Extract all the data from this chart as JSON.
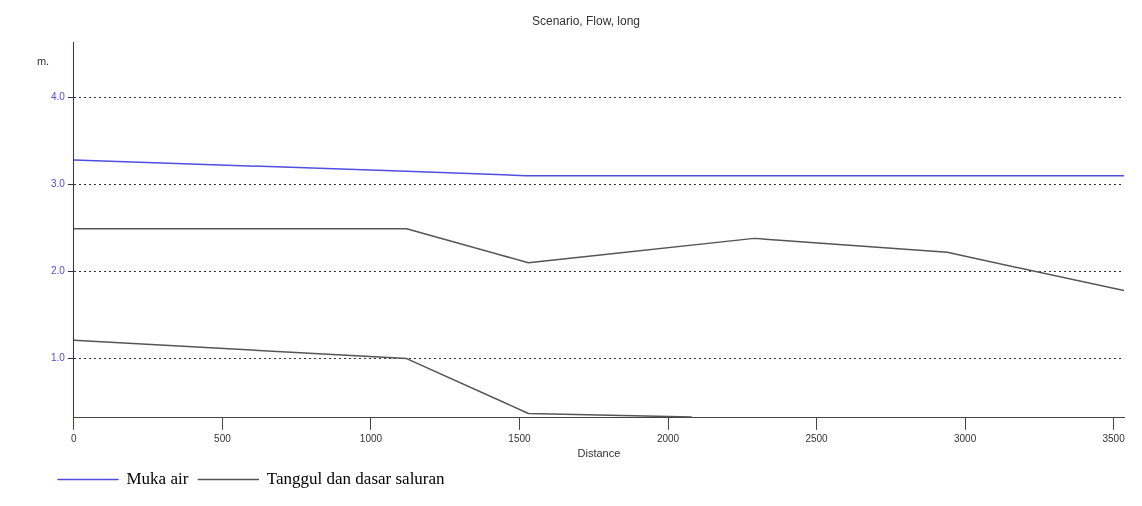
{
  "chart_data": {
    "type": "line",
    "title": "Scenario, Flow, long",
    "xlabel": "Distance",
    "ylabel": "m.",
    "xlim": [
      0,
      3535
    ],
    "xticks": [
      0,
      500,
      1000,
      1500,
      2000,
      2500,
      3000,
      3500
    ],
    "ylim": [
      0.32,
      4.63
    ],
    "yticks": [
      {
        "value": 1,
        "label": "1.0"
      },
      {
        "value": 2,
        "label": "2.0"
      },
      {
        "value": 3,
        "label": "3.0"
      },
      {
        "value": 4,
        "label": "4.0"
      }
    ],
    "grid": "y",
    "legend": "bottom left",
    "marker": "none",
    "line_style": "solid",
    "series": [
      {
        "name": "Muka air",
        "color": "#4f4fe0",
        "x": [
          0,
          1120,
          1520,
          3535
        ],
        "values": [
          3.28,
          3.15,
          3.1,
          3.1
        ]
      },
      {
        "name": "Tanggul dan dasar saluran",
        "color": "#555555",
        "x": [
          0,
          1120,
          1530,
          2290,
          2940,
          3535
        ],
        "values": [
          2.49,
          2.49,
          2.1,
          2.38,
          2.22,
          1.78
        ]
      },
      {
        "color": "#555555",
        "x": [
          0,
          1120,
          1530,
          2080
        ],
        "values": [
          1.21,
          1.0,
          0.37,
          0.33
        ]
      }
    ]
  }
}
